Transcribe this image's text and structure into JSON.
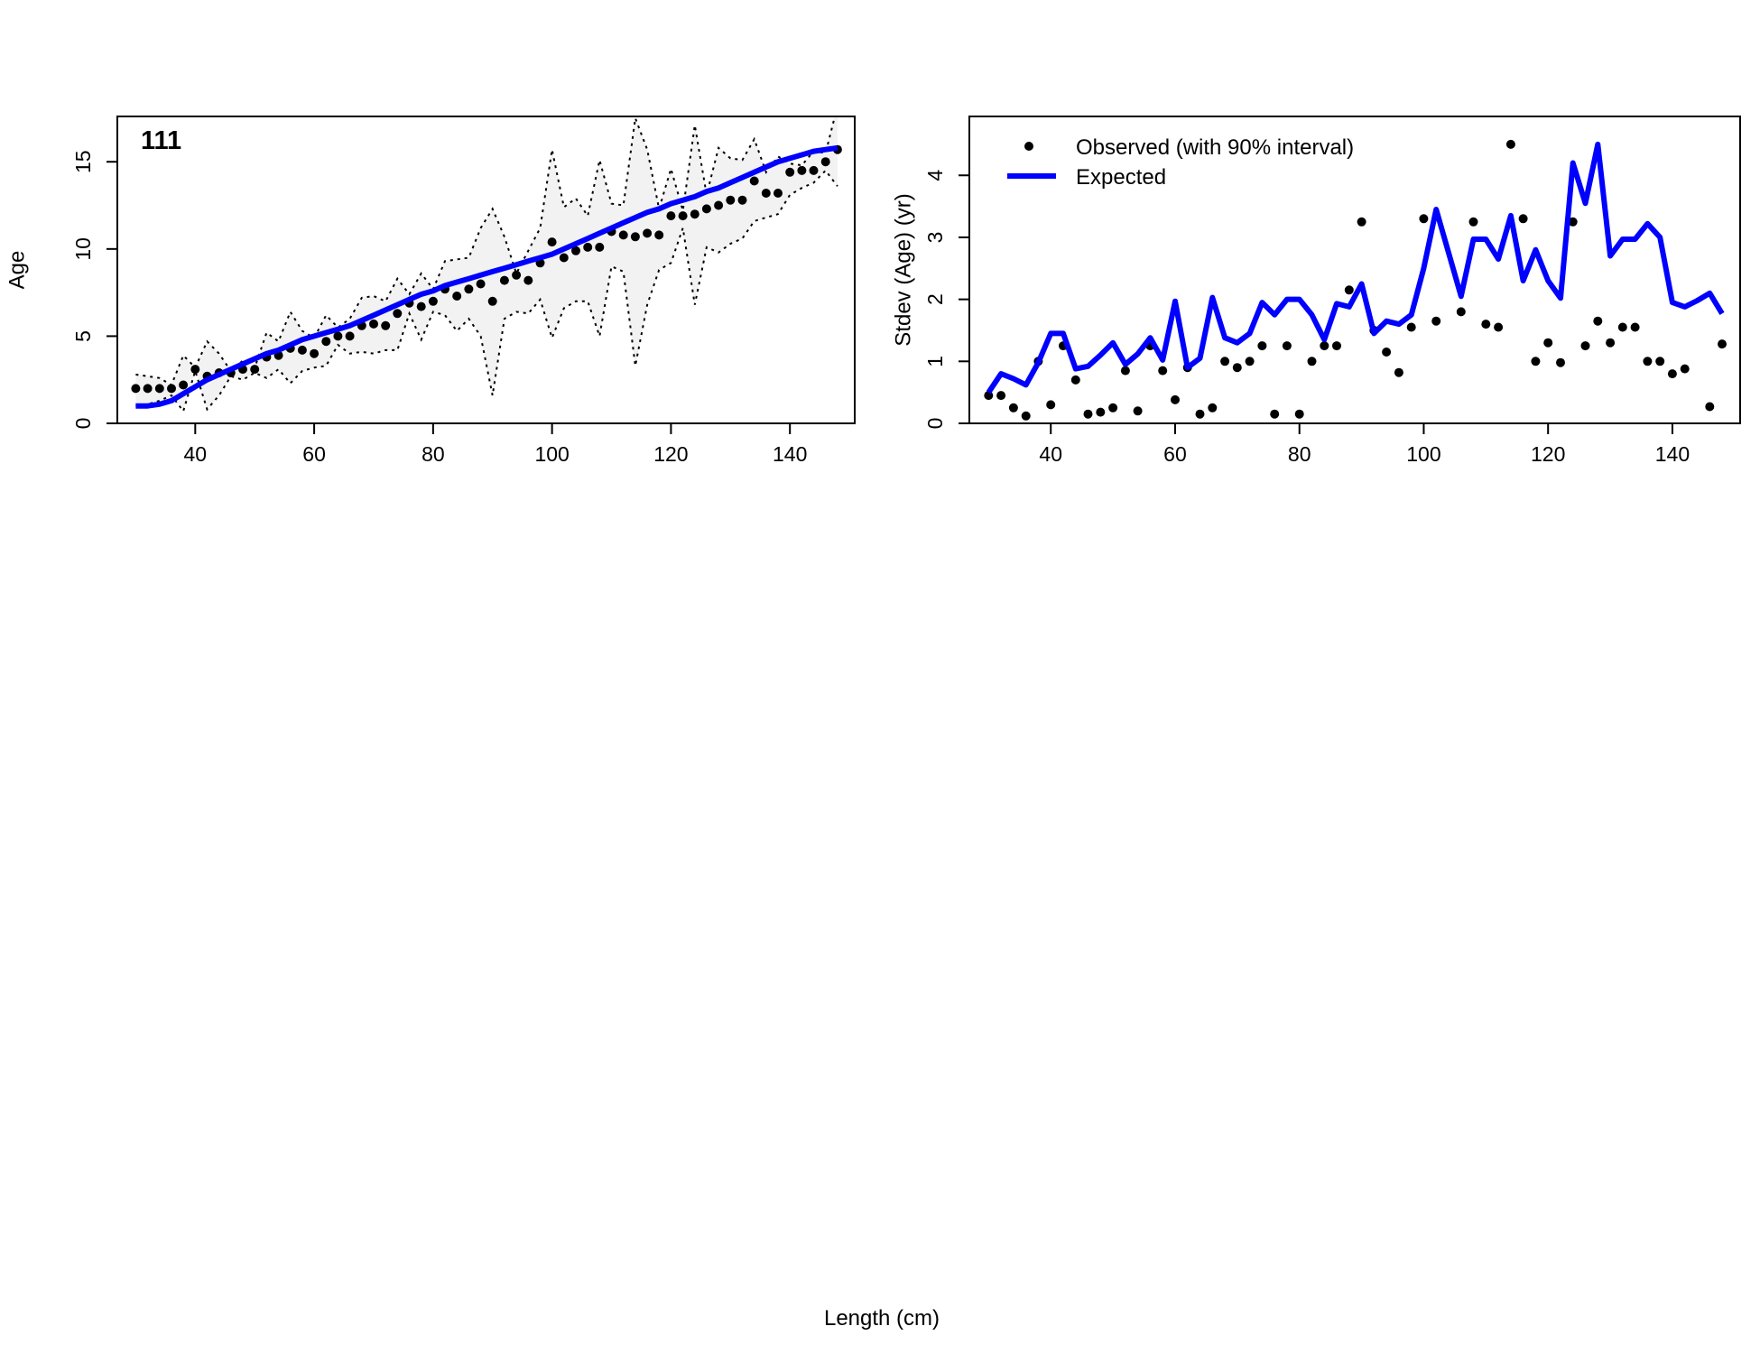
{
  "shared_xlabel": "Length (cm)",
  "colors": {
    "expected": "#0000ff",
    "observed": "#000000",
    "band": "#f2f2f2",
    "axis": "#000000"
  },
  "chart_data": [
    {
      "type": "scatter",
      "panel_label": "111",
      "xlabel": "",
      "ylabel": "Age",
      "xlim": [
        26.9,
        150.9
      ],
      "ylim": [
        0,
        17.6
      ],
      "xticks": [
        40,
        60,
        80,
        100,
        120,
        140
      ],
      "yticks": [
        0,
        5,
        10,
        15
      ],
      "grid": false,
      "legend": null,
      "series": [
        {
          "name": "Observed",
          "kind": "points",
          "x": [
            30,
            32,
            34,
            36,
            38,
            40,
            42,
            44,
            46,
            48,
            50,
            52,
            54,
            56,
            58,
            60,
            62,
            64,
            66,
            68,
            70,
            72,
            74,
            76,
            78,
            80,
            82,
            84,
            86,
            88,
            90,
            92,
            94,
            96,
            98,
            100,
            102,
            104,
            106,
            108,
            110,
            112,
            114,
            116,
            118,
            120,
            122,
            124,
            126,
            128,
            130,
            132,
            134,
            136,
            138,
            140,
            142,
            144,
            146,
            148
          ],
          "y": [
            2.0,
            2.0,
            2.0,
            2.0,
            2.2,
            3.1,
            2.7,
            2.9,
            2.9,
            3.1,
            3.1,
            3.8,
            3.9,
            4.3,
            4.2,
            4.0,
            4.7,
            5.0,
            5.0,
            5.6,
            5.7,
            5.6,
            6.3,
            6.9,
            6.7,
            7.0,
            7.7,
            7.3,
            7.7,
            8.0,
            7.0,
            8.2,
            8.5,
            8.2,
            9.2,
            10.4,
            9.5,
            9.9,
            10.1,
            10.1,
            11.0,
            10.8,
            10.7,
            10.9,
            10.8,
            11.9,
            11.9,
            12.0,
            12.3,
            12.5,
            12.8,
            12.8,
            13.9,
            13.2,
            13.2,
            14.4,
            14.5,
            14.5,
            15.0,
            15.7
          ]
        },
        {
          "name": "Upper interval",
          "kind": "dotted",
          "x": [
            30,
            32,
            34,
            36,
            38,
            40,
            42,
            44,
            46,
            48,
            50,
            52,
            54,
            56,
            58,
            60,
            62,
            64,
            66,
            68,
            70,
            72,
            74,
            76,
            78,
            80,
            82,
            84,
            86,
            88,
            90,
            92,
            94,
            96,
            98,
            100,
            102,
            104,
            106,
            108,
            110,
            112,
            114,
            116,
            118,
            120,
            122,
            124,
            126,
            128,
            130,
            132,
            134,
            136,
            138,
            140,
            142,
            144,
            146,
            148
          ],
          "y": [
            2.8,
            2.7,
            2.6,
            2.2,
            3.9,
            3.2,
            4.7,
            4.0,
            3.0,
            3.6,
            3.2,
            5.2,
            4.7,
            6.4,
            5.3,
            4.9,
            6.2,
            5.5,
            6.0,
            7.2,
            7.3,
            7.0,
            8.3,
            7.4,
            8.6,
            7.7,
            9.3,
            9.4,
            9.5,
            11.2,
            12.3,
            10.7,
            8.6,
            9.9,
            11.2,
            15.7,
            12.4,
            12.9,
            11.9,
            15.1,
            12.6,
            12.5,
            17.5,
            15.7,
            12.3,
            14.6,
            12.2,
            17.1,
            13.1,
            15.8,
            15.2,
            15.1,
            16.3,
            14.4,
            15.3,
            14.9,
            14.8,
            15.6,
            15.5,
            18.2
          ]
        },
        {
          "name": "Lower interval",
          "kind": "dotted",
          "x": [
            30,
            32,
            34,
            36,
            38,
            40,
            42,
            44,
            46,
            48,
            50,
            52,
            54,
            56,
            58,
            60,
            62,
            64,
            66,
            68,
            70,
            72,
            74,
            76,
            78,
            80,
            82,
            84,
            86,
            88,
            90,
            92,
            94,
            96,
            98,
            100,
            102,
            104,
            106,
            108,
            110,
            112,
            114,
            116,
            118,
            120,
            122,
            124,
            126,
            128,
            130,
            132,
            134,
            136,
            138,
            140,
            142,
            144,
            146,
            148
          ],
          "y": [
            1.0,
            1.1,
            1.3,
            1.6,
            0.7,
            3.0,
            0.8,
            1.6,
            2.7,
            2.5,
            2.9,
            2.6,
            3.1,
            2.3,
            3.0,
            3.2,
            3.3,
            4.5,
            4.0,
            4.1,
            4.0,
            4.2,
            4.2,
            6.3,
            4.8,
            6.4,
            6.2,
            5.3,
            6.0,
            5.0,
            1.6,
            6.0,
            6.4,
            6.3,
            7.1,
            4.9,
            6.6,
            7.0,
            7.0,
            5.0,
            9.0,
            8.7,
            3.3,
            6.8,
            8.8,
            9.2,
            11.2,
            6.8,
            10.1,
            9.8,
            10.3,
            10.6,
            11.6,
            11.8,
            12.0,
            13.1,
            13.5,
            13.8,
            14.5,
            13.6
          ]
        },
        {
          "name": "Expected",
          "kind": "line",
          "x": [
            30,
            32,
            34,
            36,
            38,
            40,
            42,
            44,
            46,
            48,
            50,
            52,
            54,
            56,
            58,
            60,
            62,
            64,
            66,
            68,
            70,
            72,
            74,
            76,
            78,
            80,
            82,
            84,
            86,
            88,
            90,
            92,
            94,
            96,
            98,
            100,
            102,
            104,
            106,
            108,
            110,
            112,
            114,
            116,
            118,
            120,
            122,
            124,
            126,
            128,
            130,
            132,
            134,
            136,
            138,
            140,
            142,
            144,
            146,
            148
          ],
          "y": [
            1.0,
            1.0,
            1.1,
            1.3,
            1.7,
            2.1,
            2.5,
            2.8,
            3.1,
            3.4,
            3.7,
            4.0,
            4.2,
            4.5,
            4.8,
            5.0,
            5.2,
            5.4,
            5.6,
            5.9,
            6.2,
            6.5,
            6.8,
            7.1,
            7.4,
            7.6,
            7.9,
            8.1,
            8.3,
            8.5,
            8.7,
            8.9,
            9.1,
            9.3,
            9.5,
            9.7,
            10.0,
            10.3,
            10.6,
            10.9,
            11.2,
            11.5,
            11.8,
            12.1,
            12.3,
            12.6,
            12.8,
            13.0,
            13.3,
            13.5,
            13.8,
            14.1,
            14.4,
            14.7,
            15.0,
            15.2,
            15.4,
            15.6,
            15.7,
            15.8
          ]
        }
      ]
    },
    {
      "type": "scatter",
      "panel_label": "",
      "xlabel": "",
      "ylabel": "Stdev (Age) (yr)",
      "xlim": [
        26.9,
        150.9
      ],
      "ylim": [
        0,
        4.95
      ],
      "xticks": [
        40,
        60,
        80,
        100,
        120,
        140
      ],
      "yticks": [
        0,
        1,
        2,
        3,
        4
      ],
      "grid": false,
      "legend": {
        "position": "top-left",
        "entries": [
          {
            "label": "Observed (with 90% interval)",
            "symbol": "point"
          },
          {
            "label": "Expected",
            "symbol": "line"
          }
        ]
      },
      "series": [
        {
          "name": "Observed (with 90% interval)",
          "kind": "points",
          "x": [
            30,
            32,
            34,
            36,
            38,
            40,
            42,
            44,
            46,
            48,
            50,
            52,
            54,
            56,
            58,
            60,
            62,
            64,
            66,
            68,
            70,
            72,
            74,
            76,
            78,
            80,
            82,
            84,
            86,
            88,
            90,
            92,
            94,
            96,
            98,
            100,
            102,
            104,
            106,
            108,
            110,
            112,
            114,
            116,
            118,
            120,
            122,
            124,
            126,
            128,
            130,
            132,
            134,
            136,
            138,
            140,
            142,
            144,
            146,
            148
          ],
          "y": [
            0.45,
            0.45,
            0.25,
            0.12,
            1.0,
            0.3,
            1.25,
            0.7,
            0.15,
            0.18,
            0.25,
            0.85,
            0.2,
            1.25,
            0.85,
            0.38,
            0.9,
            0.15,
            0.25,
            1.0,
            0.9,
            1.0,
            1.25,
            0.15,
            1.25,
            0.15,
            1.0,
            1.25,
            1.25,
            2.15,
            3.25,
            1.5,
            1.15,
            0.82,
            1.55,
            3.3,
            1.65,
            null,
            1.8,
            3.25,
            1.6,
            1.55,
            4.5,
            3.3,
            1.0,
            1.3,
            0.98,
            3.25,
            1.25,
            1.65,
            1.3,
            1.55,
            1.55,
            1.0,
            1.0,
            0.8,
            0.88,
            null,
            0.27,
            1.28
          ]
        },
        {
          "name": "Expected",
          "kind": "line",
          "x": [
            30,
            32,
            34,
            36,
            38,
            40,
            42,
            44,
            46,
            48,
            50,
            52,
            54,
            56,
            58,
            60,
            62,
            64,
            66,
            68,
            70,
            72,
            74,
            76,
            78,
            80,
            82,
            84,
            86,
            88,
            90,
            92,
            94,
            96,
            98,
            100,
            102,
            104,
            106,
            108,
            110,
            112,
            114,
            116,
            118,
            120,
            122,
            124,
            126,
            128,
            130,
            132,
            134,
            136,
            138,
            140,
            142,
            144,
            146,
            148
          ],
          "y": [
            0.5,
            0.8,
            0.72,
            0.62,
            0.98,
            1.45,
            1.45,
            0.88,
            0.92,
            1.1,
            1.3,
            0.95,
            1.12,
            1.38,
            1.02,
            1.97,
            0.9,
            1.05,
            2.03,
            1.38,
            1.3,
            1.45,
            1.95,
            1.75,
            2.0,
            2.0,
            1.75,
            1.35,
            1.93,
            1.88,
            2.25,
            1.45,
            1.65,
            1.6,
            1.75,
            2.5,
            3.45,
            2.75,
            2.05,
            2.97,
            2.97,
            2.65,
            3.35,
            2.3,
            2.8,
            2.3,
            2.02,
            4.2,
            3.55,
            4.5,
            2.7,
            2.97,
            2.97,
            3.22,
            3.0,
            1.95,
            1.88,
            1.98,
            2.1,
            1.77
          ]
        }
      ]
    }
  ]
}
